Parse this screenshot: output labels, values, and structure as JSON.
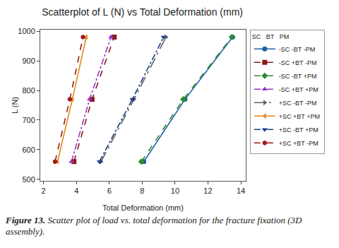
{
  "chart_data": {
    "type": "scatter",
    "title": "Scatterplot of L (N) vs Total Deformation (mm)",
    "x_label": "Total Deformation (mm)",
    "y_label": "L (N)",
    "legend_title": "SC   BT   PM",
    "legend": "right",
    "grid": false,
    "caption": "Figure 13. Scatter plot of load vs. total deformation for the fracture fixation (3D assembly).",
    "xlim": [
      1.8,
      14.3
    ],
    "xticks": [
      2,
      4,
      6,
      8,
      10,
      12,
      14
    ],
    "ylim": [
      495,
      1005
    ],
    "yticks": [
      500,
      600,
      700,
      800,
      900,
      1000
    ],
    "series": [
      {
        "name": "-SC -BT -PM",
        "color": "#1f5fa8",
        "marker": "circle",
        "line_style": "solid",
        "x": [
          8.1,
          10.6,
          13.5
        ],
        "values": [
          560,
          770,
          980
        ]
      },
      {
        "name": "-SC +BT -PM",
        "color": "#8b1a1a",
        "marker": "square",
        "line_style": "dash",
        "x": [
          3.85,
          4.95,
          6.3
        ],
        "values": [
          560,
          770,
          980
        ]
      },
      {
        "name": "-SC -BT +PM",
        "color": "#2e8b2e",
        "marker": "diamond",
        "line_style": "dash",
        "x": [
          7.95,
          10.5,
          13.45
        ],
        "values": [
          560,
          770,
          980
        ]
      },
      {
        "name": "-SC +BT +PM",
        "color": "#9932cc",
        "marker": "triangle-up",
        "line_style": "dashdot",
        "x": [
          3.7,
          4.8,
          6.1
        ],
        "values": [
          560,
          770,
          980
        ]
      },
      {
        "name": "+SC -BT -PM",
        "color": "#606060",
        "marker": "triangle-right",
        "line_style": "longdashdot",
        "x": [
          5.5,
          7.5,
          9.45
        ],
        "values": [
          560,
          770,
          980
        ]
      },
      {
        "name": "+SC +BT +PM",
        "color": "#e08a1e",
        "marker": "triangle-left",
        "line_style": "solid",
        "x": [
          2.85,
          3.75,
          4.6
        ],
        "values": [
          560,
          770,
          980
        ]
      },
      {
        "name": "+SC -BT +PM",
        "color": "#1c3f8c",
        "marker": "triangle-down",
        "line_style": "dashdot",
        "x": [
          5.4,
          7.4,
          9.3
        ],
        "values": [
          560,
          770,
          980
        ]
      },
      {
        "name": "+SC +BT -PM",
        "color": "#a01818",
        "marker": "hexagon",
        "line_style": "dash",
        "x": [
          2.7,
          3.6,
          4.4
        ],
        "values": [
          560,
          770,
          980
        ]
      }
    ]
  }
}
